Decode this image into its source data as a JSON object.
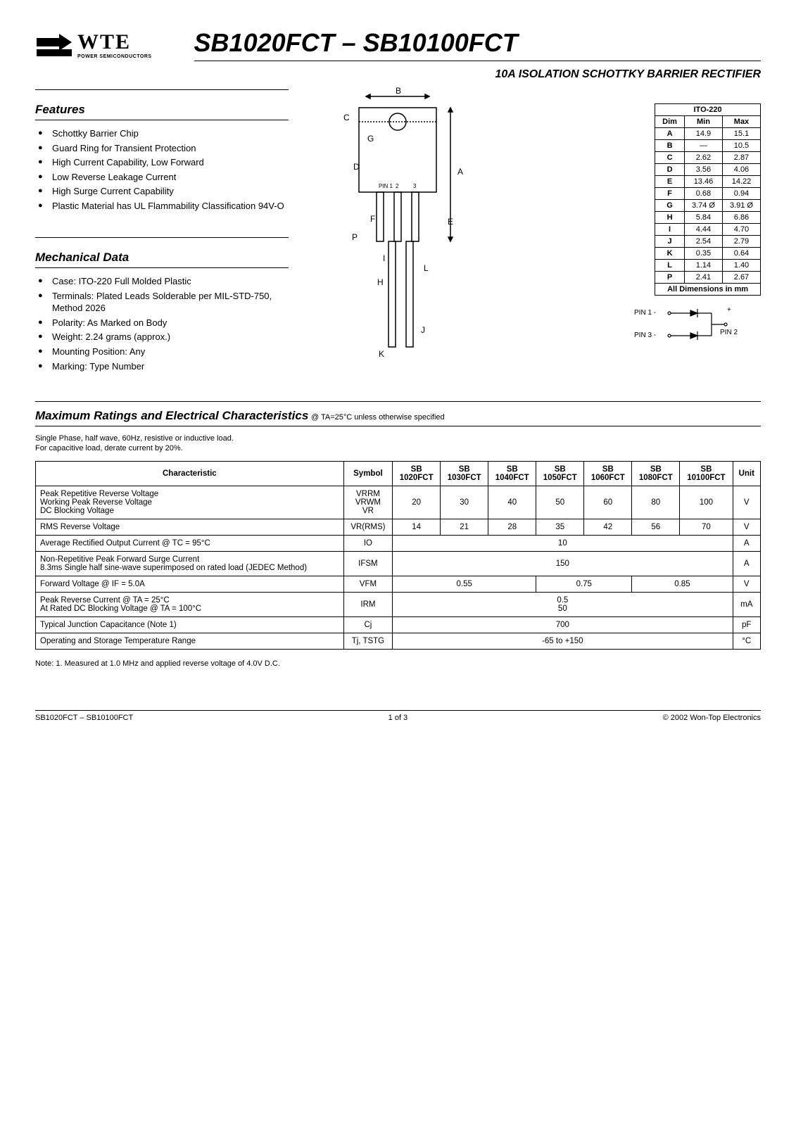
{
  "header": {
    "logo_text": "WTE",
    "logo_sub": "POWER SEMICONDUCTORS",
    "title": "SB1020FCT – SB10100FCT",
    "subtitle": "10A ISOLATION SCHOTTKY BARRIER RECTIFIER"
  },
  "features": {
    "heading": "Features",
    "items": [
      "Schottky Barrier Chip",
      "Guard Ring for Transient Protection",
      "High Current Capability, Low Forward",
      "Low Reverse Leakage Current",
      "High Surge Current Capability",
      "Plastic Material has UL Flammability Classification 94V-O"
    ]
  },
  "mechanical": {
    "heading": "Mechanical Data",
    "items": [
      "Case: ITO-220 Full Molded Plastic",
      "Terminals: Plated Leads Solderable per MIL-STD-750, Method 2026",
      "Polarity: As Marked on Body",
      "Weight: 2.24 grams (approx.)",
      "Mounting Position: Any",
      "Marking: Type Number"
    ]
  },
  "package_drawing": {
    "labels": {
      "A": "A",
      "B": "B",
      "C": "C",
      "D": "D",
      "E": "E",
      "F": "F",
      "G": "G",
      "H": "H",
      "I": "I",
      "J": "J",
      "K": "K",
      "L": "L",
      "P": "P"
    },
    "pins": {
      "p1": "PIN 1",
      "p2": "2",
      "p3": "3"
    }
  },
  "dim_table": {
    "title": "ITO-220",
    "head": {
      "dim": "Dim",
      "min": "Min",
      "max": "Max"
    },
    "rows": [
      {
        "d": "A",
        "min": "14.9",
        "max": "15.1"
      },
      {
        "d": "B",
        "min": "—",
        "max": "10.5"
      },
      {
        "d": "C",
        "min": "2.62",
        "max": "2.87"
      },
      {
        "d": "D",
        "min": "3.56",
        "max": "4.06"
      },
      {
        "d": "E",
        "min": "13.46",
        "max": "14.22"
      },
      {
        "d": "F",
        "min": "0.68",
        "max": "0.94"
      },
      {
        "d": "G",
        "min": "3.74 Ø",
        "max": "3.91 Ø"
      },
      {
        "d": "H",
        "min": "5.84",
        "max": "6.86"
      },
      {
        "d": "I",
        "min": "4.44",
        "max": "4.70"
      },
      {
        "d": "J",
        "min": "2.54",
        "max": "2.79"
      },
      {
        "d": "K",
        "min": "0.35",
        "max": "0.64"
      },
      {
        "d": "L",
        "min": "1.14",
        "max": "1.40"
      },
      {
        "d": "P",
        "min": "2.41",
        "max": "2.67"
      }
    ],
    "footer": "All Dimensions in mm"
  },
  "pin_diagram": {
    "pin1": "PIN 1 -",
    "pin3": "PIN 3 -",
    "plus": "+",
    "pin2": "PIN 2"
  },
  "ratings": {
    "heading": "Maximum Ratings and Electrical Characteristics",
    "heading_sub": "@ TA=25°C unless otherwise specified",
    "note_lines": "Single Phase, half wave, 60Hz, resistive or inductive load.\nFor capacitive load, derate current by 20%.",
    "head": {
      "char": "Characteristic",
      "sym": "Symbol",
      "c1": "SB\n1020FCT",
      "c2": "SB\n1030FCT",
      "c3": "SB\n1040FCT",
      "c4": "SB\n1050FCT",
      "c5": "SB\n1060FCT",
      "c6": "SB\n1080FCT",
      "c7": "SB\n10100FCT",
      "unit": "Unit"
    },
    "rows": [
      {
        "char": "Peak Repetitive Reverse Voltage\nWorking Peak Reverse Voltage\nDC Blocking Voltage",
        "sym": "VRRM\nVRWM\nVR",
        "vals": [
          "20",
          "30",
          "40",
          "50",
          "60",
          "80",
          "100"
        ],
        "unit": "V"
      },
      {
        "char": "RMS Reverse Voltage",
        "sym": "VR(RMS)",
        "vals": [
          "14",
          "21",
          "28",
          "35",
          "42",
          "56",
          "70"
        ],
        "unit": "V"
      },
      {
        "char": "Average Rectified Output Current   @ TC = 95°C",
        "sym": "IO",
        "span": "10",
        "unit": "A"
      },
      {
        "char": "Non-Repetitive Peak Forward Surge Current\n8.3ms Single half sine-wave superimposed on rated load (JEDEC Method)",
        "sym": "IFSM",
        "span": "150",
        "unit": "A"
      },
      {
        "char": "Forward Voltage                              @ IF = 5.0A",
        "sym": "VFM",
        "groups": [
          {
            "span": 3,
            "v": "0.55"
          },
          {
            "span": 2,
            "v": "0.75"
          },
          {
            "span": 2,
            "v": "0.85"
          }
        ],
        "unit": "V"
      },
      {
        "char": "Peak Reverse Current                    @ TA = 25°C\nAt Rated DC Blocking Voltage       @ TA = 100°C",
        "sym": "IRM",
        "span": "0.5\n50",
        "unit": "mA"
      },
      {
        "char": "Typical Junction Capacitance (Note 1)",
        "sym": "Cj",
        "span": "700",
        "unit": "pF"
      },
      {
        "char": "Operating and Storage Temperature Range",
        "sym": "Tj, TSTG",
        "span": "-65 to +150",
        "unit": "°C"
      }
    ],
    "footnote": "Note:  1. Measured at 1.0 MHz and applied reverse voltage of 4.0V D.C."
  },
  "footer": {
    "left": "SB1020FCT – SB10100FCT",
    "center": "1 of 3",
    "right": "© 2002 Won-Top Electronics"
  },
  "colors": {
    "text": "#000000",
    "bg": "#ffffff",
    "rule": "#000000"
  }
}
